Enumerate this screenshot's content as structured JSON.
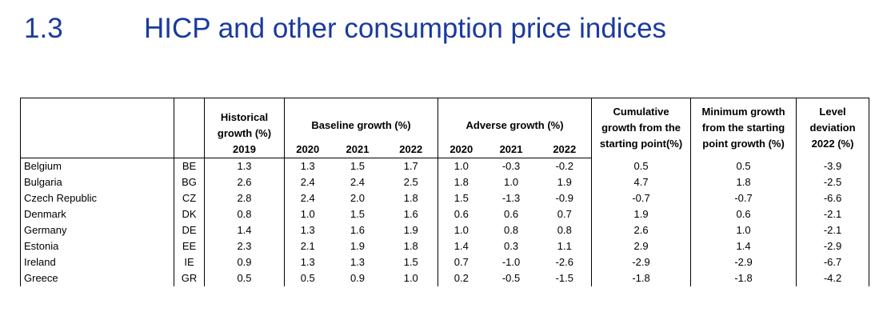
{
  "section": {
    "number": "1.3",
    "title": "HICP and other consumption price indices"
  },
  "table": {
    "headers": {
      "historical": "Historical growth (%)",
      "baseline": "Baseline growth (%)",
      "adverse": "Adverse growth (%)",
      "cumulative": "Cumulative growth from the starting point(%)",
      "minimum": "Minimum growth from the starting point growth (%)",
      "level": "Level deviation 2022 (%)"
    },
    "years": {
      "hist": "2019",
      "base1": "2020",
      "base2": "2021",
      "base3": "2022",
      "adv1": "2020",
      "adv2": "2021",
      "adv3": "2022"
    },
    "rows": [
      {
        "country": "Belgium",
        "code": "BE",
        "hist": "1.3",
        "b2020": "1.3",
        "b2021": "1.5",
        "b2022": "1.7",
        "a2020": "1.0",
        "a2021": "-0.3",
        "a2022": "-0.2",
        "cum": "0.5",
        "min": "0.5",
        "lvl": "-3.9"
      },
      {
        "country": "Bulgaria",
        "code": "BG",
        "hist": "2.6",
        "b2020": "2.4",
        "b2021": "2.4",
        "b2022": "2.5",
        "a2020": "1.8",
        "a2021": "1.0",
        "a2022": "1.9",
        "cum": "4.7",
        "min": "1.8",
        "lvl": "-2.5"
      },
      {
        "country": "Czech Republic",
        "code": "CZ",
        "hist": "2.8",
        "b2020": "2.4",
        "b2021": "2.0",
        "b2022": "1.8",
        "a2020": "1.5",
        "a2021": "-1.3",
        "a2022": "-0.9",
        "cum": "-0.7",
        "min": "-0.7",
        "lvl": "-6.6"
      },
      {
        "country": "Denmark",
        "code": "DK",
        "hist": "0.8",
        "b2020": "1.0",
        "b2021": "1.5",
        "b2022": "1.6",
        "a2020": "0.6",
        "a2021": "0.6",
        "a2022": "0.7",
        "cum": "1.9",
        "min": "0.6",
        "lvl": "-2.1"
      },
      {
        "country": "Germany",
        "code": "DE",
        "hist": "1.4",
        "b2020": "1.3",
        "b2021": "1.6",
        "b2022": "1.9",
        "a2020": "1.0",
        "a2021": "0.8",
        "a2022": "0.8",
        "cum": "2.6",
        "min": "1.0",
        "lvl": "-2.1"
      },
      {
        "country": "Estonia",
        "code": "EE",
        "hist": "2.3",
        "b2020": "2.1",
        "b2021": "1.9",
        "b2022": "1.8",
        "a2020": "1.4",
        "a2021": "0.3",
        "a2022": "1.1",
        "cum": "2.9",
        "min": "1.4",
        "lvl": "-2.9"
      },
      {
        "country": "Ireland",
        "code": "IE",
        "hist": "0.9",
        "b2020": "1.3",
        "b2021": "1.3",
        "b2022": "1.5",
        "a2020": "0.7",
        "a2021": "-1.0",
        "a2022": "-2.6",
        "cum": "-2.9",
        "min": "-2.9",
        "lvl": "-6.7"
      },
      {
        "country": "Greece",
        "code": "GR",
        "hist": "0.5",
        "b2020": "0.5",
        "b2021": "0.9",
        "b2022": "1.0",
        "a2020": "0.2",
        "a2021": "-0.5",
        "a2022": "-1.5",
        "cum": "-1.8",
        "min": "-1.8",
        "lvl": "-4.2"
      }
    ]
  }
}
